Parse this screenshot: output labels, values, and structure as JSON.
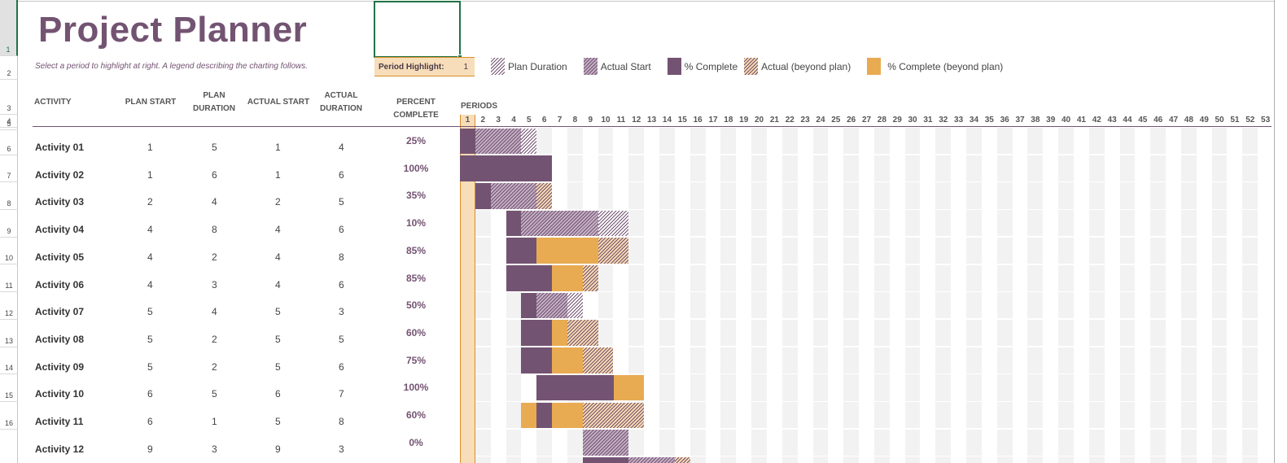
{
  "sheet": {
    "row_numbers": [
      "1",
      "2",
      "3",
      "4",
      "5",
      "6",
      "7",
      "8",
      "9",
      "10",
      "11",
      "12",
      "13",
      "14",
      "15",
      "16"
    ],
    "selected_row": "1"
  },
  "header": {
    "title": "Project Planner",
    "subtitle": "Select a period to highlight at right.  A legend describing the charting follows.",
    "period_highlight_label": "Period Highlight:",
    "period_highlight_value": "1"
  },
  "legend": [
    {
      "label": "Plan Duration",
      "style": "hatch-plan"
    },
    {
      "label": "Actual Start",
      "style": "hatch-actual"
    },
    {
      "label": "% Complete",
      "style": "solid-complete"
    },
    {
      "label": "Actual (beyond plan)",
      "style": "hatch-beyond"
    },
    {
      "label": "% Complete (beyond plan)",
      "style": "solid-beyond"
    }
  ],
  "columns": {
    "activity": "ACTIVITY",
    "plan_start": "PLAN START",
    "plan_duration": "PLAN DURATION",
    "actual_start": "ACTUAL START",
    "actual_duration": "ACTUAL DURATION",
    "percent_complete": "PERCENT COMPLETE",
    "periods": "PERIODS"
  },
  "colors": {
    "accent_purple": "#735372",
    "accent_orange": "#e8ab52",
    "highlight_peach": "#f7ddb9",
    "stripe_gray": "#f2f2f2",
    "selection_green": "#217346"
  },
  "period_count": 53,
  "highlighted_period": 1,
  "activities": [
    {
      "name": "Activity 01",
      "plan_start": "1",
      "plan_duration": "5",
      "actual_start": "1",
      "actual_duration": "4",
      "percent": "25%",
      "bars": [
        {
          "from": 1,
          "to": 1,
          "type": "solid-complete"
        },
        {
          "from": 2,
          "to": 4,
          "type": "hatch-actual"
        },
        {
          "from": 5,
          "to": 5,
          "type": "hatch-plan"
        }
      ]
    },
    {
      "name": "Activity 02",
      "plan_start": "1",
      "plan_duration": "6",
      "actual_start": "1",
      "actual_duration": "6",
      "percent": "100%",
      "bars": [
        {
          "from": 1,
          "to": 6,
          "type": "solid-complete"
        }
      ]
    },
    {
      "name": "Activity 03",
      "plan_start": "2",
      "plan_duration": "4",
      "actual_start": "2",
      "actual_duration": "5",
      "percent": "35%",
      "bars": [
        {
          "from": 2,
          "to": 2,
          "type": "solid-complete"
        },
        {
          "from": 3,
          "to": 5,
          "type": "hatch-actual"
        },
        {
          "from": 6,
          "to": 6,
          "type": "hatch-beyond"
        }
      ]
    },
    {
      "name": "Activity 04",
      "plan_start": "4",
      "plan_duration": "8",
      "actual_start": "4",
      "actual_duration": "6",
      "percent": "10%",
      "bars": [
        {
          "from": 4,
          "to": 4,
          "type": "solid-complete"
        },
        {
          "from": 5,
          "to": 9,
          "type": "hatch-actual"
        },
        {
          "from": 10,
          "to": 11,
          "type": "hatch-plan"
        }
      ]
    },
    {
      "name": "Activity 05",
      "plan_start": "4",
      "plan_duration": "2",
      "actual_start": "4",
      "actual_duration": "8",
      "percent": "85%",
      "bars": [
        {
          "from": 4,
          "to": 5,
          "type": "solid-complete"
        },
        {
          "from": 6,
          "to": 9,
          "type": "solid-beyond"
        },
        {
          "from": 10,
          "to": 11,
          "type": "hatch-beyond"
        }
      ]
    },
    {
      "name": "Activity 06",
      "plan_start": "4",
      "plan_duration": "3",
      "actual_start": "4",
      "actual_duration": "6",
      "percent": "85%",
      "bars": [
        {
          "from": 4,
          "to": 6,
          "type": "solid-complete"
        },
        {
          "from": 7,
          "to": 8,
          "type": "solid-beyond"
        },
        {
          "from": 9,
          "to": 9,
          "type": "hatch-beyond"
        }
      ]
    },
    {
      "name": "Activity 07",
      "plan_start": "5",
      "plan_duration": "4",
      "actual_start": "5",
      "actual_duration": "3",
      "percent": "50%",
      "bars": [
        {
          "from": 5,
          "to": 5,
          "type": "solid-complete"
        },
        {
          "from": 6,
          "to": 7,
          "type": "hatch-actual"
        },
        {
          "from": 8,
          "to": 8,
          "type": "hatch-plan"
        }
      ]
    },
    {
      "name": "Activity 08",
      "plan_start": "5",
      "plan_duration": "2",
      "actual_start": "5",
      "actual_duration": "5",
      "percent": "60%",
      "bars": [
        {
          "from": 5,
          "to": 6,
          "type": "solid-complete"
        },
        {
          "from": 7,
          "to": 7,
          "type": "solid-beyond"
        },
        {
          "from": 8,
          "to": 9,
          "type": "hatch-beyond"
        }
      ]
    },
    {
      "name": "Activity 09",
      "plan_start": "5",
      "plan_duration": "2",
      "actual_start": "5",
      "actual_duration": "6",
      "percent": "75%",
      "bars": [
        {
          "from": 5,
          "to": 6,
          "type": "solid-complete"
        },
        {
          "from": 7,
          "to": 8,
          "type": "solid-beyond"
        },
        {
          "from": 9,
          "to": 10,
          "type": "hatch-beyond"
        }
      ]
    },
    {
      "name": "Activity 10",
      "plan_start": "6",
      "plan_duration": "5",
      "actual_start": "6",
      "actual_duration": "7",
      "percent": "100%",
      "bars": [
        {
          "from": 6,
          "to": 10,
          "type": "solid-complete"
        },
        {
          "from": 11,
          "to": 12,
          "type": "solid-beyond"
        }
      ]
    },
    {
      "name": "Activity 11",
      "plan_start": "6",
      "plan_duration": "1",
      "actual_start": "5",
      "actual_duration": "8",
      "percent": "60%",
      "bars": [
        {
          "from": 5,
          "to": 5,
          "type": "solid-beyond"
        },
        {
          "from": 6,
          "to": 6,
          "type": "solid-complete"
        },
        {
          "from": 7,
          "to": 8,
          "type": "solid-beyond"
        },
        {
          "from": 9,
          "to": 12,
          "type": "hatch-beyond"
        }
      ]
    },
    {
      "name": "Activity 12",
      "plan_start": "9",
      "plan_duration": "3",
      "actual_start": "9",
      "actual_duration": "3",
      "percent": "0%",
      "bars": [
        {
          "from": 9,
          "to": 11,
          "type": "hatch-actual"
        }
      ]
    }
  ],
  "partial_row_bars": [
    {
      "from": 9,
      "to": 11,
      "type": "solid-complete"
    },
    {
      "from": 12,
      "to": 14,
      "type": "hatch-actual"
    },
    {
      "from": 15,
      "to": 15,
      "type": "hatch-beyond"
    }
  ]
}
